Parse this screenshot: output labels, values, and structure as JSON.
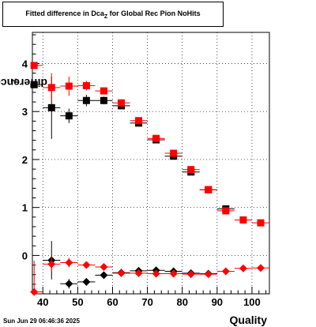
{
  "title": {
    "main": "Fitted difference in Dca",
    "sub": "Z",
    "rest": " for Global Rec Pion NoHits"
  },
  "ylabel": {
    "main": "difference in Dca",
    "sub": "Z"
  },
  "xlabel": "Quality",
  "datestamp": "Sun Jun 29 06:46:36 2025",
  "chart_data": {
    "type": "scatter",
    "xlim": [
      37,
      105
    ],
    "ylim": [
      -0.8,
      4.65
    ],
    "xticks": [
      40,
      50,
      60,
      70,
      80,
      90,
      100
    ],
    "yticks": [
      0,
      1,
      2,
      3,
      4
    ],
    "grid": true,
    "series": [
      {
        "marker": "square",
        "color": "#000000",
        "points": [
          {
            "x": 37.5,
            "y": 3.56,
            "ey": 0.0
          },
          {
            "x": 42.5,
            "y": 3.08,
            "ey": 0.65
          },
          {
            "x": 47.5,
            "y": 2.91,
            "ey": 0.15
          },
          {
            "x": 52.5,
            "y": 3.23,
            "ey": 0.12
          },
          {
            "x": 57.5,
            "y": 3.23,
            "ey": 0.08
          },
          {
            "x": 62.5,
            "y": 3.12,
            "ey": 0.06
          },
          {
            "x": 67.5,
            "y": 2.76,
            "ey": 0.05
          },
          {
            "x": 72.5,
            "y": 2.41,
            "ey": 0.04
          },
          {
            "x": 77.5,
            "y": 2.07,
            "ey": 0.04
          },
          {
            "x": 82.5,
            "y": 1.74,
            "ey": 0.03
          },
          {
            "x": 87.5,
            "y": 1.37,
            "ey": 0.03
          },
          {
            "x": 92.5,
            "y": 0.97,
            "ey": 0.03
          }
        ]
      },
      {
        "marker": "square",
        "color": "#ff0000",
        "points": [
          {
            "x": 37.5,
            "y": 3.96,
            "ey": 0.0
          },
          {
            "x": 42.5,
            "y": 3.5,
            "ey": 0.3
          },
          {
            "x": 47.5,
            "y": 3.53,
            "ey": 0.2
          },
          {
            "x": 52.5,
            "y": 3.54,
            "ey": 0.1
          },
          {
            "x": 57.5,
            "y": 3.43,
            "ey": 0.07
          },
          {
            "x": 62.5,
            "y": 3.18,
            "ey": 0.06
          },
          {
            "x": 67.5,
            "y": 2.81,
            "ey": 0.05
          },
          {
            "x": 72.5,
            "y": 2.44,
            "ey": 0.04
          },
          {
            "x": 77.5,
            "y": 2.13,
            "ey": 0.04
          },
          {
            "x": 82.5,
            "y": 1.79,
            "ey": 0.03
          },
          {
            "x": 87.5,
            "y": 1.37,
            "ey": 0.03
          },
          {
            "x": 92.5,
            "y": 0.93,
            "ey": 0.03
          },
          {
            "x": 97.5,
            "y": 0.74,
            "ey": 0.03
          },
          {
            "x": 102.5,
            "y": 0.68,
            "ey": 0.03
          }
        ]
      },
      {
        "marker": "diamond",
        "color": "#000000",
        "points": [
          {
            "x": 42.5,
            "y": -0.1,
            "ey": 0.4
          },
          {
            "x": 47.5,
            "y": -0.59,
            "ey": 0.1
          },
          {
            "x": 52.5,
            "y": -0.55,
            "ey": 0.07
          },
          {
            "x": 57.5,
            "y": -0.41,
            "ey": 0.05
          },
          {
            "x": 62.5,
            "y": -0.36,
            "ey": 0.04
          },
          {
            "x": 67.5,
            "y": -0.32,
            "ey": 0.04
          },
          {
            "x": 72.5,
            "y": -0.31,
            "ey": 0.03
          },
          {
            "x": 77.5,
            "y": -0.33,
            "ey": 0.03
          },
          {
            "x": 82.5,
            "y": -0.37,
            "ey": 0.03
          },
          {
            "x": 87.5,
            "y": -0.38,
            "ey": 0.03
          }
        ]
      },
      {
        "marker": "diamond",
        "color": "#ff0000",
        "points": [
          {
            "x": 37.5,
            "y": -0.76,
            "ey": 0.65
          },
          {
            "x": 42.5,
            "y": -0.18,
            "ey": 0.15
          },
          {
            "x": 47.5,
            "y": -0.15,
            "ey": 0.1
          },
          {
            "x": 52.5,
            "y": -0.2,
            "ey": 0.07
          },
          {
            "x": 57.5,
            "y": -0.24,
            "ey": 0.05
          },
          {
            "x": 62.5,
            "y": -0.37,
            "ey": 0.04
          },
          {
            "x": 67.5,
            "y": -0.37,
            "ey": 0.04
          },
          {
            "x": 72.5,
            "y": -0.38,
            "ey": 0.03
          },
          {
            "x": 77.5,
            "y": -0.38,
            "ey": 0.03
          },
          {
            "x": 82.5,
            "y": -0.39,
            "ey": 0.03
          },
          {
            "x": 87.5,
            "y": -0.39,
            "ey": 0.03
          },
          {
            "x": 92.5,
            "y": -0.33,
            "ey": 0.03
          },
          {
            "x": 97.5,
            "y": -0.27,
            "ey": 0.03
          },
          {
            "x": 102.5,
            "y": -0.26,
            "ey": 0.03
          }
        ]
      }
    ]
  }
}
